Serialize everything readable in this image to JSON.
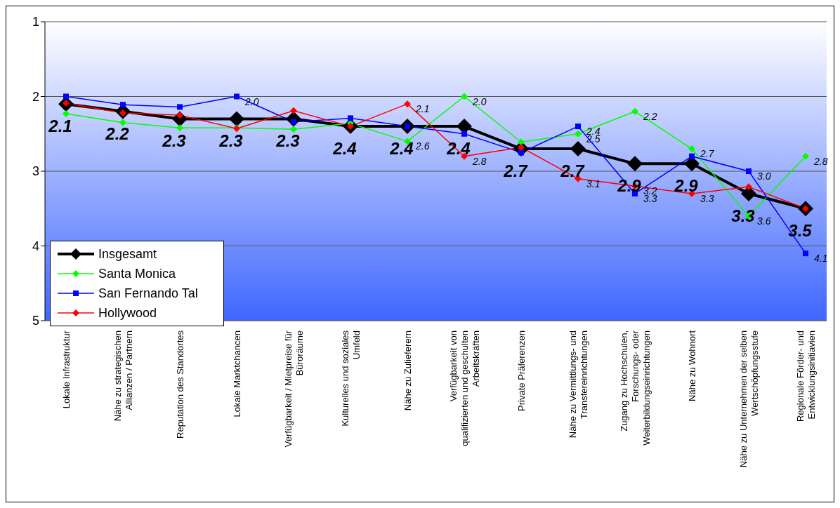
{
  "chart_data": {
    "type": "line",
    "categories": [
      "Lokale Infrastruktur",
      "Nähe zu strategischen Allianzen / Partnern",
      "Reputation des Standortes",
      "Lokale Marktchancen",
      "Verfügbarkeit / Mietpreise für Büroräume",
      "Kulturelles und soziales Umfeld",
      "Nähe zu Zulieferern",
      "Verfügbarkeit von qualifizierten und geschulten Arbeitskräften",
      "Private Präferenzen",
      "Nähe zu Vermittlungs- und Transfereinrichtungen",
      "Zugang zu Hochschulen, Forschungs- oder Weiterbildungseinrichtungen",
      "Nähe zu Wohnort",
      "Nähe zu Unternehmen der selben Wertschöpfungsstufe",
      "Regionale Förder- und Entwicklungsinitiavien"
    ],
    "series": [
      {
        "name": "Insgesamt",
        "color": "#000000",
        "marker": "diamond",
        "values": [
          2.1,
          2.2,
          2.3,
          2.3,
          2.3,
          2.4,
          2.4,
          2.4,
          2.7,
          2.7,
          2.9,
          2.9,
          3.3,
          3.5
        ],
        "value_labels": [
          "2.1",
          "2.2",
          "2.3",
          "2.3",
          "2.3",
          "2.4",
          "2.4",
          "2.4",
          "2.7",
          "2.7",
          "2.9",
          "2.9",
          "3.3",
          "3.5"
        ]
      },
      {
        "name": "Santa Monica",
        "color": "#00ff00",
        "marker": "diamond",
        "values": [
          2.23,
          2.35,
          2.42,
          2.42,
          2.44,
          2.36,
          2.6,
          2.0,
          2.61,
          2.5,
          2.2,
          2.7,
          3.6,
          2.8
        ],
        "value_labels": [
          null,
          null,
          null,
          null,
          null,
          null,
          "2.6",
          "2.0",
          null,
          "2.5",
          "2.2",
          "2.7",
          "3.6",
          "2.8"
        ]
      },
      {
        "name": "San Fernando Tal",
        "color": "#0000ff",
        "marker": "square",
        "values": [
          2.0,
          2.11,
          2.14,
          2.0,
          2.34,
          2.29,
          2.4,
          2.5,
          2.75,
          2.4,
          3.3,
          2.8,
          3.0,
          4.1
        ],
        "value_labels": [
          null,
          null,
          null,
          "2.0",
          null,
          null,
          null,
          null,
          null,
          "2.4",
          "3.3",
          null,
          "3.0",
          "4.1"
        ]
      },
      {
        "name": "Hollywood",
        "color": "#ff0000",
        "marker": "diamond",
        "values": [
          2.09,
          2.22,
          2.25,
          2.43,
          2.19,
          2.4,
          2.1,
          2.8,
          2.68,
          3.1,
          3.2,
          3.3,
          3.21,
          3.5
        ],
        "value_labels": [
          null,
          null,
          null,
          null,
          null,
          null,
          "2.1",
          "2.8",
          null,
          "3.1",
          "3.2",
          "3.3",
          null,
          null
        ]
      }
    ],
    "ylim": [
      5,
      1
    ],
    "yticks": [
      1,
      2,
      3,
      4,
      5
    ],
    "grid": "y",
    "legend": "bottom left"
  }
}
